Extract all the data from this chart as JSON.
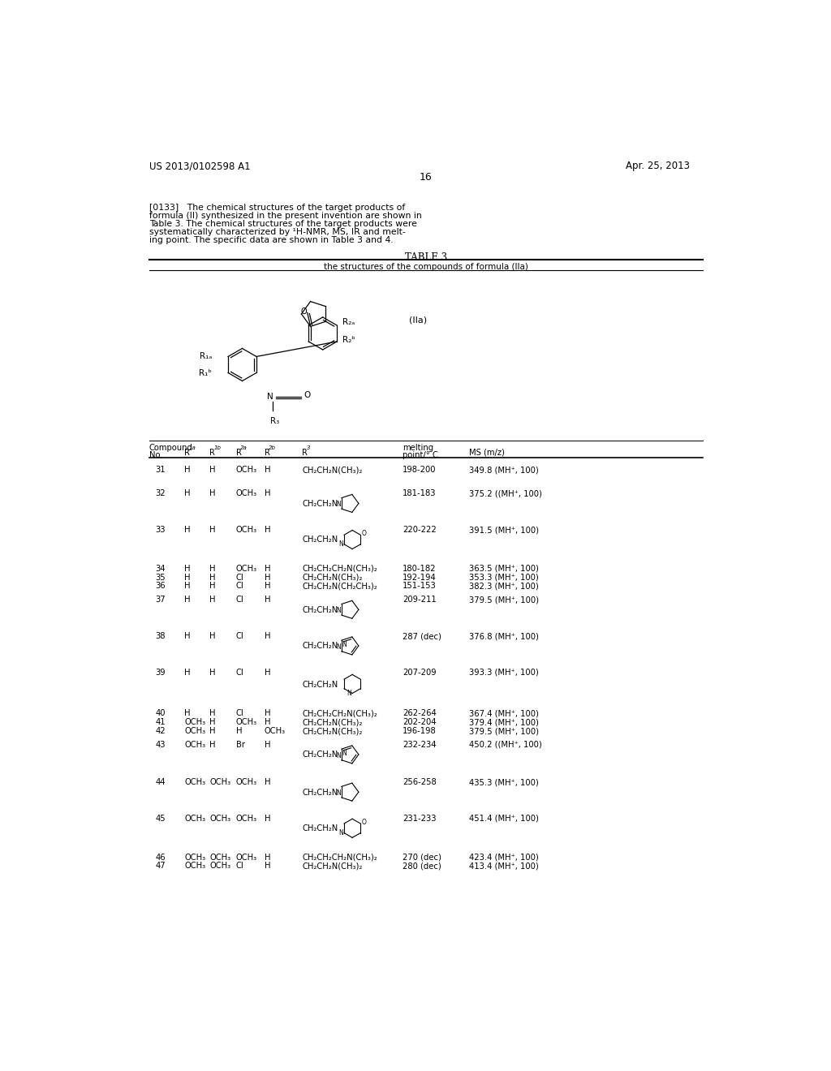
{
  "page_num": "16",
  "patent_num": "US 2013/0102598 A1",
  "patent_date": "Apr. 25, 2013",
  "para_lines": [
    "[0133]   The chemical structures of the target products of",
    "formula (II) synthesized in the present invention are shown in",
    "Table 3. The chemical structures of the target products were",
    "systematically characterized by ¹H-NMR, MS, IR and melt-",
    "ing point. The specific data are shown in Table 3 and 4."
  ],
  "table_title": "TABLE 3",
  "table_subtitle": "the structures of the compounds of formula (IIa)",
  "formula_label": "(IIa)",
  "bg_color": "#ffffff"
}
